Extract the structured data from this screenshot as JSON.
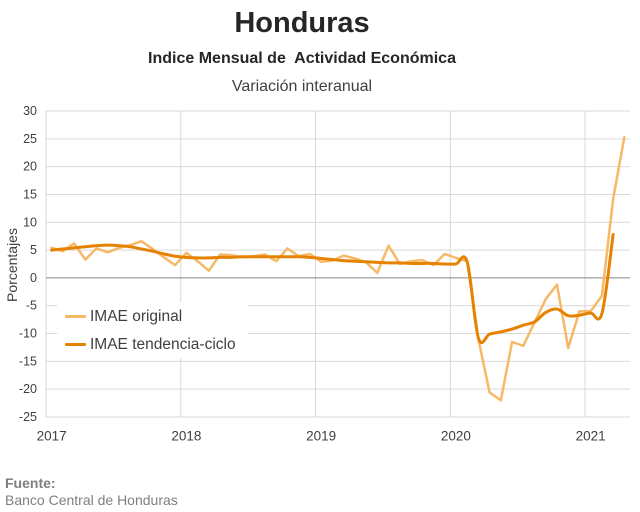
{
  "chart_data": {
    "type": "line",
    "title": "Honduras",
    "subtitle": "Indice Mensual de  Actividad Económica",
    "subtitle2": "Variación interanual",
    "ylabel": "Porcentajes",
    "ylim": [
      -25,
      30
    ],
    "yticks": [
      30,
      25,
      20,
      15,
      10,
      5,
      0,
      -5,
      -10,
      -15,
      -20,
      -25
    ],
    "xticks": [
      "2017",
      "2018",
      "2019",
      "2020",
      "2021"
    ],
    "x": [
      "2017-01",
      "2017-02",
      "2017-03",
      "2017-04",
      "2017-05",
      "2017-06",
      "2017-07",
      "2017-08",
      "2017-09",
      "2017-10",
      "2017-11",
      "2017-12",
      "2018-01",
      "2018-02",
      "2018-03",
      "2018-04",
      "2018-05",
      "2018-06",
      "2018-07",
      "2018-08",
      "2018-09",
      "2018-10",
      "2018-11",
      "2018-12",
      "2019-01",
      "2019-02",
      "2019-03",
      "2019-04",
      "2019-05",
      "2019-06",
      "2019-07",
      "2019-08",
      "2019-09",
      "2019-10",
      "2019-11",
      "2019-12",
      "2020-01",
      "2020-02",
      "2020-03",
      "2020-04",
      "2020-05",
      "2020-06",
      "2020-07",
      "2020-08",
      "2020-09",
      "2020-10",
      "2020-11",
      "2020-12",
      "2021-01",
      "2021-02",
      "2021-03",
      "2021-04"
    ],
    "series": [
      {
        "name": "IMAE original",
        "color": "#F6B967",
        "values": [
          5.4,
          4.8,
          6.2,
          3.3,
          5.3,
          4.6,
          5.4,
          5.9,
          6.6,
          5.2,
          3.7,
          2.3,
          4.5,
          3.0,
          1.3,
          4.2,
          4.1,
          3.7,
          3.9,
          4.2,
          3.0,
          5.3,
          3.9,
          4.3,
          2.9,
          3.1,
          4.0,
          3.5,
          2.8,
          0.9,
          5.8,
          2.5,
          3.0,
          3.2,
          2.3,
          4.3,
          3.6,
          3.0,
          -11.0,
          -20.6,
          -22.0,
          -11.5,
          -12.2,
          -8.0,
          -3.8,
          -1.2,
          -12.6,
          -6.0,
          -6.0,
          -3.2,
          14.2,
          25.3
        ]
      },
      {
        "name": "IMAE tendencia-ciclo",
        "color": "#E58300",
        "values": [
          5.0,
          5.2,
          5.4,
          5.6,
          5.8,
          5.9,
          5.8,
          5.6,
          5.2,
          4.8,
          4.3,
          3.9,
          3.7,
          3.6,
          3.6,
          3.7,
          3.7,
          3.8,
          3.8,
          3.8,
          3.8,
          3.8,
          3.8,
          3.7,
          3.5,
          3.3,
          3.1,
          3.0,
          2.9,
          2.8,
          2.7,
          2.7,
          2.6,
          2.6,
          2.6,
          2.5,
          2.5,
          2.9,
          -10.8,
          -10.1,
          -9.7,
          -9.2,
          -8.5,
          -7.9,
          -6.2,
          -5.6,
          -6.8,
          -6.7,
          -6.3,
          -6.4,
          7.8,
          null
        ]
      }
    ],
    "grid": true,
    "grid_color": "#D9D9D9",
    "zero_line_color": "#868686",
    "legend": "lower-left"
  },
  "source": {
    "label": "Fuente:",
    "text": "Banco Central de Honduras"
  }
}
